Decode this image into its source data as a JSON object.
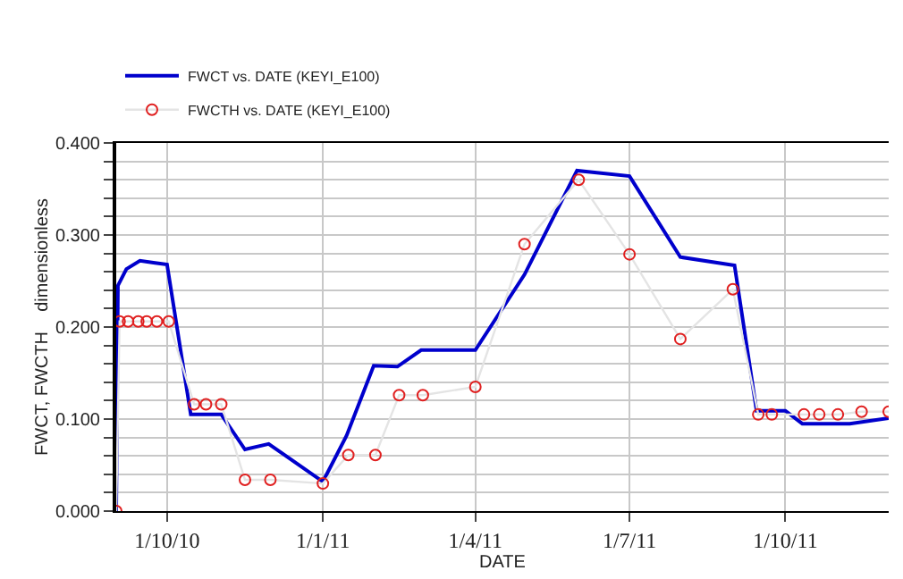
{
  "chart_data": {
    "type": "line",
    "xlabel": "DATE",
    "ylabel": "FWCT, FWCTH    dimensionless",
    "x": [
      "2010-09-01",
      "2010-09-02",
      "2010-09-07",
      "2010-09-15",
      "2010-09-23",
      "2010-10-01",
      "2010-10-15",
      "2010-11-02",
      "2010-11-16",
      "2010-11-30",
      "2011-01-01",
      "2011-01-15",
      "2011-01-31",
      "2011-02-14",
      "2011-02-28",
      "2011-04-01",
      "2011-04-30",
      "2011-05-31",
      "2011-07-01",
      "2011-07-31",
      "2011-09-01",
      "2011-09-14",
      "2011-10-01",
      "2011-10-11",
      "2011-11-08",
      "2011-12-01"
    ],
    "series": [
      {
        "name": "FWCT vs. DATE (KEYI_E100)",
        "color": "#0000cc",
        "marker": "none",
        "values": [
          0.0,
          0.245,
          0.263,
          0.272,
          0.27,
          0.268,
          0.105,
          0.105,
          0.067,
          0.073,
          0.032,
          0.082,
          0.158,
          0.157,
          0.175,
          0.175,
          0.257,
          0.37,
          0.364,
          0.276,
          0.267,
          0.109,
          0.109,
          0.095,
          0.095,
          0.101
        ]
      },
      {
        "name": "FWCTH vs. DATE (KEYI_E100)",
        "color": "#e02020",
        "marker": "circle",
        "x": [
          "2010-09-01",
          "2010-09-03",
          "2010-09-08",
          "2010-09-14",
          "2010-09-19",
          "2010-09-25",
          "2010-10-02",
          "2010-10-17",
          "2010-10-24",
          "2010-11-02",
          "2010-11-16",
          "2010-12-01",
          "2011-01-01",
          "2011-01-16",
          "2011-02-01",
          "2011-02-15",
          "2011-03-01",
          "2011-04-01",
          "2011-04-30",
          "2011-06-01",
          "2011-07-01",
          "2011-07-31",
          "2011-08-31",
          "2011-09-15",
          "2011-09-23",
          "2011-10-12",
          "2011-10-21",
          "2011-11-01",
          "2011-11-15",
          "2011-12-01"
        ],
        "values": [
          0.0,
          0.206,
          0.206,
          0.206,
          0.206,
          0.206,
          0.206,
          0.116,
          0.116,
          0.116,
          0.034,
          0.034,
          0.03,
          0.061,
          0.061,
          0.126,
          0.126,
          0.135,
          0.29,
          0.36,
          0.279,
          0.187,
          0.241,
          0.105,
          0.105,
          0.105,
          0.105,
          0.105,
          0.108,
          0.108
        ]
      }
    ],
    "xlim": [
      "2010-09-01",
      "2011-12-01"
    ],
    "xticks": [
      {
        "value": "2010-10-01",
        "label": "1/10/10"
      },
      {
        "value": "2011-01-01",
        "label": "1/1/11"
      },
      {
        "value": "2011-04-01",
        "label": "1/4/11"
      },
      {
        "value": "2011-07-01",
        "label": "1/7/11"
      },
      {
        "value": "2011-10-01",
        "label": "1/10/11"
      }
    ],
    "ylim": [
      0,
      0.4
    ],
    "yticks": [
      {
        "value": 0,
        "label": "0.000"
      },
      {
        "value": 0.02,
        "label": null
      },
      {
        "value": 0.04,
        "label": null
      },
      {
        "value": 0.06,
        "label": null
      },
      {
        "value": 0.08,
        "label": null
      },
      {
        "value": 0.1,
        "label": "0.100"
      },
      {
        "value": 0.12,
        "label": null
      },
      {
        "value": 0.14,
        "label": null
      },
      {
        "value": 0.16,
        "label": null
      },
      {
        "value": 0.18,
        "label": null
      },
      {
        "value": 0.2,
        "label": "0.200"
      },
      {
        "value": 0.22,
        "label": null
      },
      {
        "value": 0.24,
        "label": null
      },
      {
        "value": 0.26,
        "label": null
      },
      {
        "value": 0.28,
        "label": null
      },
      {
        "value": 0.3,
        "label": "0.300"
      },
      {
        "value": 0.32,
        "label": null
      },
      {
        "value": 0.34,
        "label": null
      },
      {
        "value": 0.36,
        "label": null
      },
      {
        "value": 0.38,
        "label": null
      },
      {
        "value": 0.4,
        "label": "0.400"
      }
    ],
    "grid": true,
    "legend": "top left"
  }
}
